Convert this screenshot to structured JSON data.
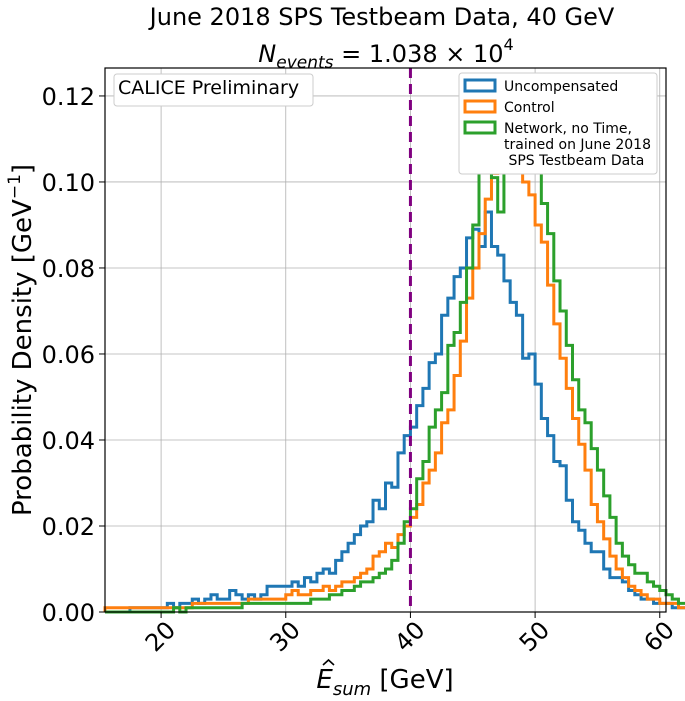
{
  "chart_data": {
    "type": "histogram-step",
    "title": "June 2018 SPS Testbeam Data, 40 GeV",
    "subtitle": {
      "prefix": "N",
      "sub": "events",
      "value": " = 1.038 × 10",
      "exp": "4"
    },
    "xlabel": {
      "base": "E",
      "sub": "sum",
      "unit": " [GeV]"
    },
    "ylabel": "Probability Density [GeV",
    "ylabel_exp": "−1",
    "ylabel_close": "]",
    "xlim": [
      15.5,
      60.5
    ],
    "ylim": [
      0,
      0.1265
    ],
    "xticks": [
      20,
      30,
      40,
      50,
      60
    ],
    "xtick_labels": [
      "20",
      "30",
      "40",
      "50",
      "60"
    ],
    "yticks": [
      0,
      0.02,
      0.04,
      0.06,
      0.08,
      0.1,
      0.12
    ],
    "ytick_labels": [
      "0.00",
      "0.02",
      "0.04",
      "0.06",
      "0.08",
      "0.10",
      "0.12"
    ],
    "grid": true,
    "bin_start": 15.5,
    "bin_width": 0.5,
    "vline": {
      "x": 40,
      "color": "#800080",
      "style": "dashed"
    },
    "annotation": "CALICE Preliminary",
    "legend_position": "top-right",
    "series": [
      {
        "name": "Uncompensated",
        "color": "#1f77b4",
        "values": [
          0,
          0,
          0,
          0,
          0.001,
          0.001,
          0.001,
          0.001,
          0.001,
          0.001,
          0.002,
          0.001,
          0.002,
          0.002,
          0.003,
          0.002,
          0.003,
          0.004,
          0.003,
          0.003,
          0.005,
          0.004,
          0.003,
          0.004,
          0.003,
          0.004,
          0.006,
          0.006,
          0.006,
          0.006,
          0.007,
          0.006,
          0.008,
          0.007,
          0.009,
          0.01,
          0.009,
          0.012,
          0.014,
          0.016,
          0.018,
          0.02,
          0.021,
          0.026,
          0.024,
          0.03,
          0.029,
          0.037,
          0.041,
          0.043,
          0.048,
          0.052,
          0.058,
          0.06,
          0.069,
          0.073,
          0.078,
          0.08,
          0.087,
          0.089,
          0.085,
          0.093,
          0.085,
          0.083,
          0.077,
          0.072,
          0.069,
          0.059,
          0.06,
          0.053,
          0.045,
          0.041,
          0.035,
          0.034,
          0.026,
          0.021,
          0.019,
          0.016,
          0.014,
          0.014,
          0.01,
          0.008,
          0.008,
          0.007,
          0.005,
          0.004,
          0.003,
          0.003,
          0.002,
          0.002,
          0.002,
          0.001,
          0.001,
          0.001,
          0.001,
          0.001,
          0.001,
          0,
          0,
          0,
          0,
          0,
          0,
          0,
          0,
          0,
          0,
          0,
          0,
          0,
          0,
          0,
          0,
          0,
          0,
          0,
          0,
          0,
          0,
          0
        ]
      },
      {
        "name": "Control",
        "color": "#ff7f0e",
        "values": [
          0.001,
          0.001,
          0.001,
          0.001,
          0.001,
          0.001,
          0.001,
          0.001,
          0.001,
          0.001,
          0.001,
          0.001,
          0.001,
          0.001,
          0.002,
          0.002,
          0.002,
          0.002,
          0.002,
          0.002,
          0.002,
          0.002,
          0.002,
          0.003,
          0.003,
          0.003,
          0.003,
          0.003,
          0.003,
          0.004,
          0.005,
          0.004,
          0.004,
          0.005,
          0.005,
          0.006,
          0.005,
          0.006,
          0.007,
          0.007,
          0.008,
          0.009,
          0.01,
          0.013,
          0.014,
          0.016,
          0.015,
          0.018,
          0.02,
          0.022,
          0.025,
          0.03,
          0.033,
          0.037,
          0.044,
          0.047,
          0.055,
          0.063,
          0.073,
          0.08,
          0.088,
          0.096,
          0.102,
          0.106,
          0.11,
          0.103,
          0.108,
          0.1,
          0.097,
          0.09,
          0.086,
          0.076,
          0.067,
          0.059,
          0.052,
          0.045,
          0.039,
          0.033,
          0.025,
          0.021,
          0.017,
          0.013,
          0.01,
          0.008,
          0.006,
          0.005,
          0.004,
          0.003,
          0.003,
          0.002,
          0.002,
          0.002,
          0.001,
          0.001,
          0.001,
          0.001,
          0.001,
          0.001,
          0.001,
          0.001,
          0.001,
          0,
          0,
          0,
          0,
          0,
          0,
          0,
          0,
          0,
          0,
          0,
          0,
          0,
          0,
          0,
          0,
          0,
          0,
          0,
          0,
          0
        ]
      },
      {
        "name": "Network, no Time,\ntrained on June 2018\n SPS Testbeam Data",
        "color": "#2ca02c",
        "values": [
          0,
          0,
          0,
          0,
          0,
          0,
          0,
          0,
          0,
          0,
          0,
          0.001,
          0,
          0.001,
          0.001,
          0.001,
          0.001,
          0.001,
          0.001,
          0.001,
          0.001,
          0.001,
          0.002,
          0.002,
          0.002,
          0.002,
          0.002,
          0.002,
          0.002,
          0.002,
          0.002,
          0.002,
          0.002,
          0.003,
          0.003,
          0.003,
          0.004,
          0.004,
          0.005,
          0.005,
          0.006,
          0.007,
          0.007,
          0.008,
          0.009,
          0.01,
          0.012,
          0.016,
          0.021,
          0.024,
          0.031,
          0.035,
          0.043,
          0.047,
          0.051,
          0.062,
          0.065,
          0.072,
          0.08,
          0.09,
          0.107,
          0.105,
          0.101,
          0.093,
          0.11,
          0.114,
          0.12,
          0.119,
          0.111,
          0.106,
          0.095,
          0.088,
          0.077,
          0.07,
          0.062,
          0.054,
          0.047,
          0.044,
          0.038,
          0.033,
          0.027,
          0.022,
          0.016,
          0.013,
          0.011,
          0.009,
          0.009,
          0.007,
          0.006,
          0.005,
          0.004,
          0.003,
          0.002,
          0.002,
          0.002,
          0.002,
          0.001,
          0.001,
          0.001,
          0.001,
          0.001,
          0.001,
          0.001,
          0,
          0,
          0,
          0,
          0,
          0,
          0,
          0,
          0,
          0,
          0,
          0,
          0,
          0,
          0,
          0,
          0,
          0
        ]
      }
    ]
  }
}
